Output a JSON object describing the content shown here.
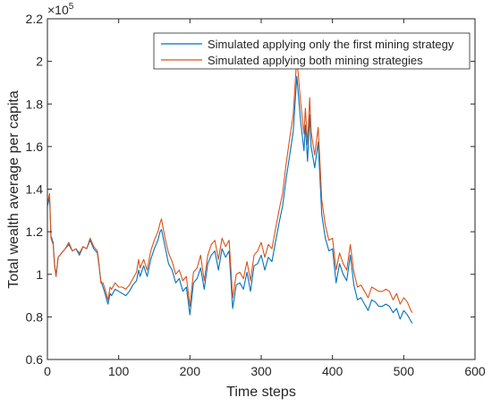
{
  "chart_data": {
    "type": "line",
    "xlabel": "Time steps",
    "ylabel": "Total wealth average per capita",
    "y_multiplier_label": "×10",
    "y_multiplier_exponent": "5",
    "xlim": [
      0,
      600
    ],
    "ylim": [
      0.6,
      2.2
    ],
    "x_ticks": [
      0,
      100,
      200,
      300,
      400,
      500,
      600
    ],
    "y_ticks": [
      0.6,
      0.8,
      1,
      1.2,
      1.4,
      1.6,
      1.8,
      2,
      2.2
    ],
    "x_tick_labels": [
      "0",
      "100",
      "200",
      "300",
      "400",
      "500",
      "600"
    ],
    "y_tick_labels": [
      "0.6",
      "0.8",
      "1",
      "1.2",
      "1.4",
      "1.6",
      "1.8",
      "2",
      "2.2"
    ],
    "grid": false,
    "legend_position": "top-right",
    "series": [
      {
        "name": "Simulated applying only the first mining strategy",
        "color": "#0072BD",
        "x": [
          0,
          3,
          5,
          8,
          10,
          12,
          15,
          20,
          25,
          30,
          35,
          40,
          45,
          50,
          55,
          60,
          65,
          70,
          72,
          75,
          78,
          80,
          85,
          88,
          90,
          95,
          100,
          105,
          110,
          115,
          120,
          125,
          128,
          130,
          135,
          140,
          145,
          150,
          155,
          158,
          160,
          165,
          170,
          175,
          180,
          185,
          190,
          195,
          200,
          205,
          210,
          215,
          220,
          225,
          230,
          235,
          240,
          245,
          250,
          255,
          260,
          265,
          270,
          275,
          280,
          285,
          290,
          295,
          300,
          305,
          310,
          315,
          320,
          325,
          330,
          335,
          340,
          345,
          350,
          355,
          360,
          362,
          365,
          368,
          370,
          375,
          380,
          385,
          390,
          395,
          400,
          405,
          410,
          415,
          420,
          425,
          430,
          435,
          440,
          445,
          450,
          455,
          460,
          465,
          470,
          475,
          480,
          485,
          490,
          495,
          500,
          505,
          510,
          512
        ],
        "y": [
          1.32,
          1.36,
          1.18,
          1.15,
          1.05,
          0.99,
          1.08,
          1.1,
          1.12,
          1.14,
          1.11,
          1.12,
          1.09,
          1.13,
          1.12,
          1.16,
          1.12,
          1.1,
          1.05,
          0.97,
          0.94,
          0.92,
          0.86,
          0.91,
          0.9,
          0.93,
          0.92,
          0.91,
          0.9,
          0.92,
          0.95,
          0.97,
          1.02,
          0.99,
          1.04,
          0.99,
          1.07,
          1.12,
          1.16,
          1.2,
          1.21,
          1.13,
          1.05,
          1.02,
          0.96,
          0.98,
          0.92,
          0.94,
          0.81,
          0.96,
          0.98,
          1.03,
          0.93,
          1.05,
          1.09,
          1.11,
          1.02,
          1.12,
          1.08,
          1.11,
          0.84,
          0.95,
          0.96,
          0.93,
          1.01,
          0.92,
          1.04,
          1.05,
          1.09,
          1.02,
          1.08,
          1.06,
          1.15,
          1.24,
          1.32,
          1.45,
          1.56,
          1.67,
          1.93,
          1.73,
          1.58,
          1.7,
          1.53,
          1.75,
          1.6,
          1.5,
          1.62,
          1.28,
          1.17,
          1.11,
          1.12,
          0.96,
          1.05,
          1.0,
          0.97,
          1.09,
          0.95,
          0.88,
          0.89,
          0.86,
          0.83,
          0.88,
          0.87,
          0.85,
          0.85,
          0.86,
          0.85,
          0.82,
          0.84,
          0.79,
          0.83,
          0.81,
          0.78,
          0.77
        ]
      },
      {
        "name": "Simulated applying both mining strategies",
        "color": "#D95319",
        "x": [
          0,
          3,
          5,
          8,
          10,
          12,
          15,
          20,
          25,
          30,
          35,
          40,
          45,
          50,
          55,
          60,
          65,
          70,
          72,
          75,
          78,
          80,
          85,
          88,
          90,
          95,
          100,
          105,
          110,
          115,
          120,
          125,
          128,
          130,
          135,
          140,
          145,
          150,
          155,
          158,
          160,
          165,
          170,
          175,
          180,
          185,
          190,
          195,
          200,
          205,
          210,
          215,
          220,
          225,
          230,
          235,
          240,
          245,
          250,
          255,
          260,
          265,
          270,
          275,
          280,
          285,
          290,
          295,
          300,
          305,
          310,
          315,
          320,
          325,
          330,
          335,
          340,
          345,
          350,
          355,
          360,
          362,
          365,
          368,
          370,
          375,
          380,
          385,
          390,
          395,
          400,
          405,
          410,
          415,
          420,
          425,
          430,
          435,
          440,
          445,
          450,
          455,
          460,
          465,
          470,
          475,
          480,
          485,
          490,
          495,
          500,
          505,
          510,
          512
        ],
        "y": [
          1.33,
          1.38,
          1.17,
          1.14,
          1.04,
          0.99,
          1.08,
          1.1,
          1.12,
          1.15,
          1.11,
          1.12,
          1.1,
          1.13,
          1.12,
          1.17,
          1.13,
          1.11,
          1.06,
          0.96,
          0.96,
          0.94,
          0.88,
          0.94,
          0.93,
          0.96,
          0.94,
          0.94,
          0.93,
          0.95,
          0.98,
          1.01,
          1.07,
          1.03,
          1.07,
          1.02,
          1.11,
          1.16,
          1.2,
          1.24,
          1.26,
          1.17,
          1.1,
          1.06,
          1.0,
          1.02,
          0.97,
          0.99,
          0.85,
          1.01,
          1.03,
          1.09,
          0.97,
          1.09,
          1.14,
          1.16,
          1.07,
          1.17,
          1.13,
          1.16,
          0.89,
          1.0,
          1.01,
          0.98,
          1.06,
          0.97,
          1.09,
          1.11,
          1.15,
          1.08,
          1.14,
          1.12,
          1.21,
          1.3,
          1.38,
          1.52,
          1.64,
          1.75,
          2.02,
          1.82,
          1.66,
          1.78,
          1.61,
          1.83,
          1.67,
          1.56,
          1.69,
          1.35,
          1.23,
          1.16,
          1.17,
          1.02,
          1.1,
          1.05,
          1.02,
          1.14,
          1.01,
          0.94,
          0.95,
          0.92,
          0.89,
          0.94,
          0.93,
          0.92,
          0.92,
          0.93,
          0.92,
          0.88,
          0.91,
          0.86,
          0.89,
          0.87,
          0.83,
          0.82
        ]
      }
    ]
  }
}
